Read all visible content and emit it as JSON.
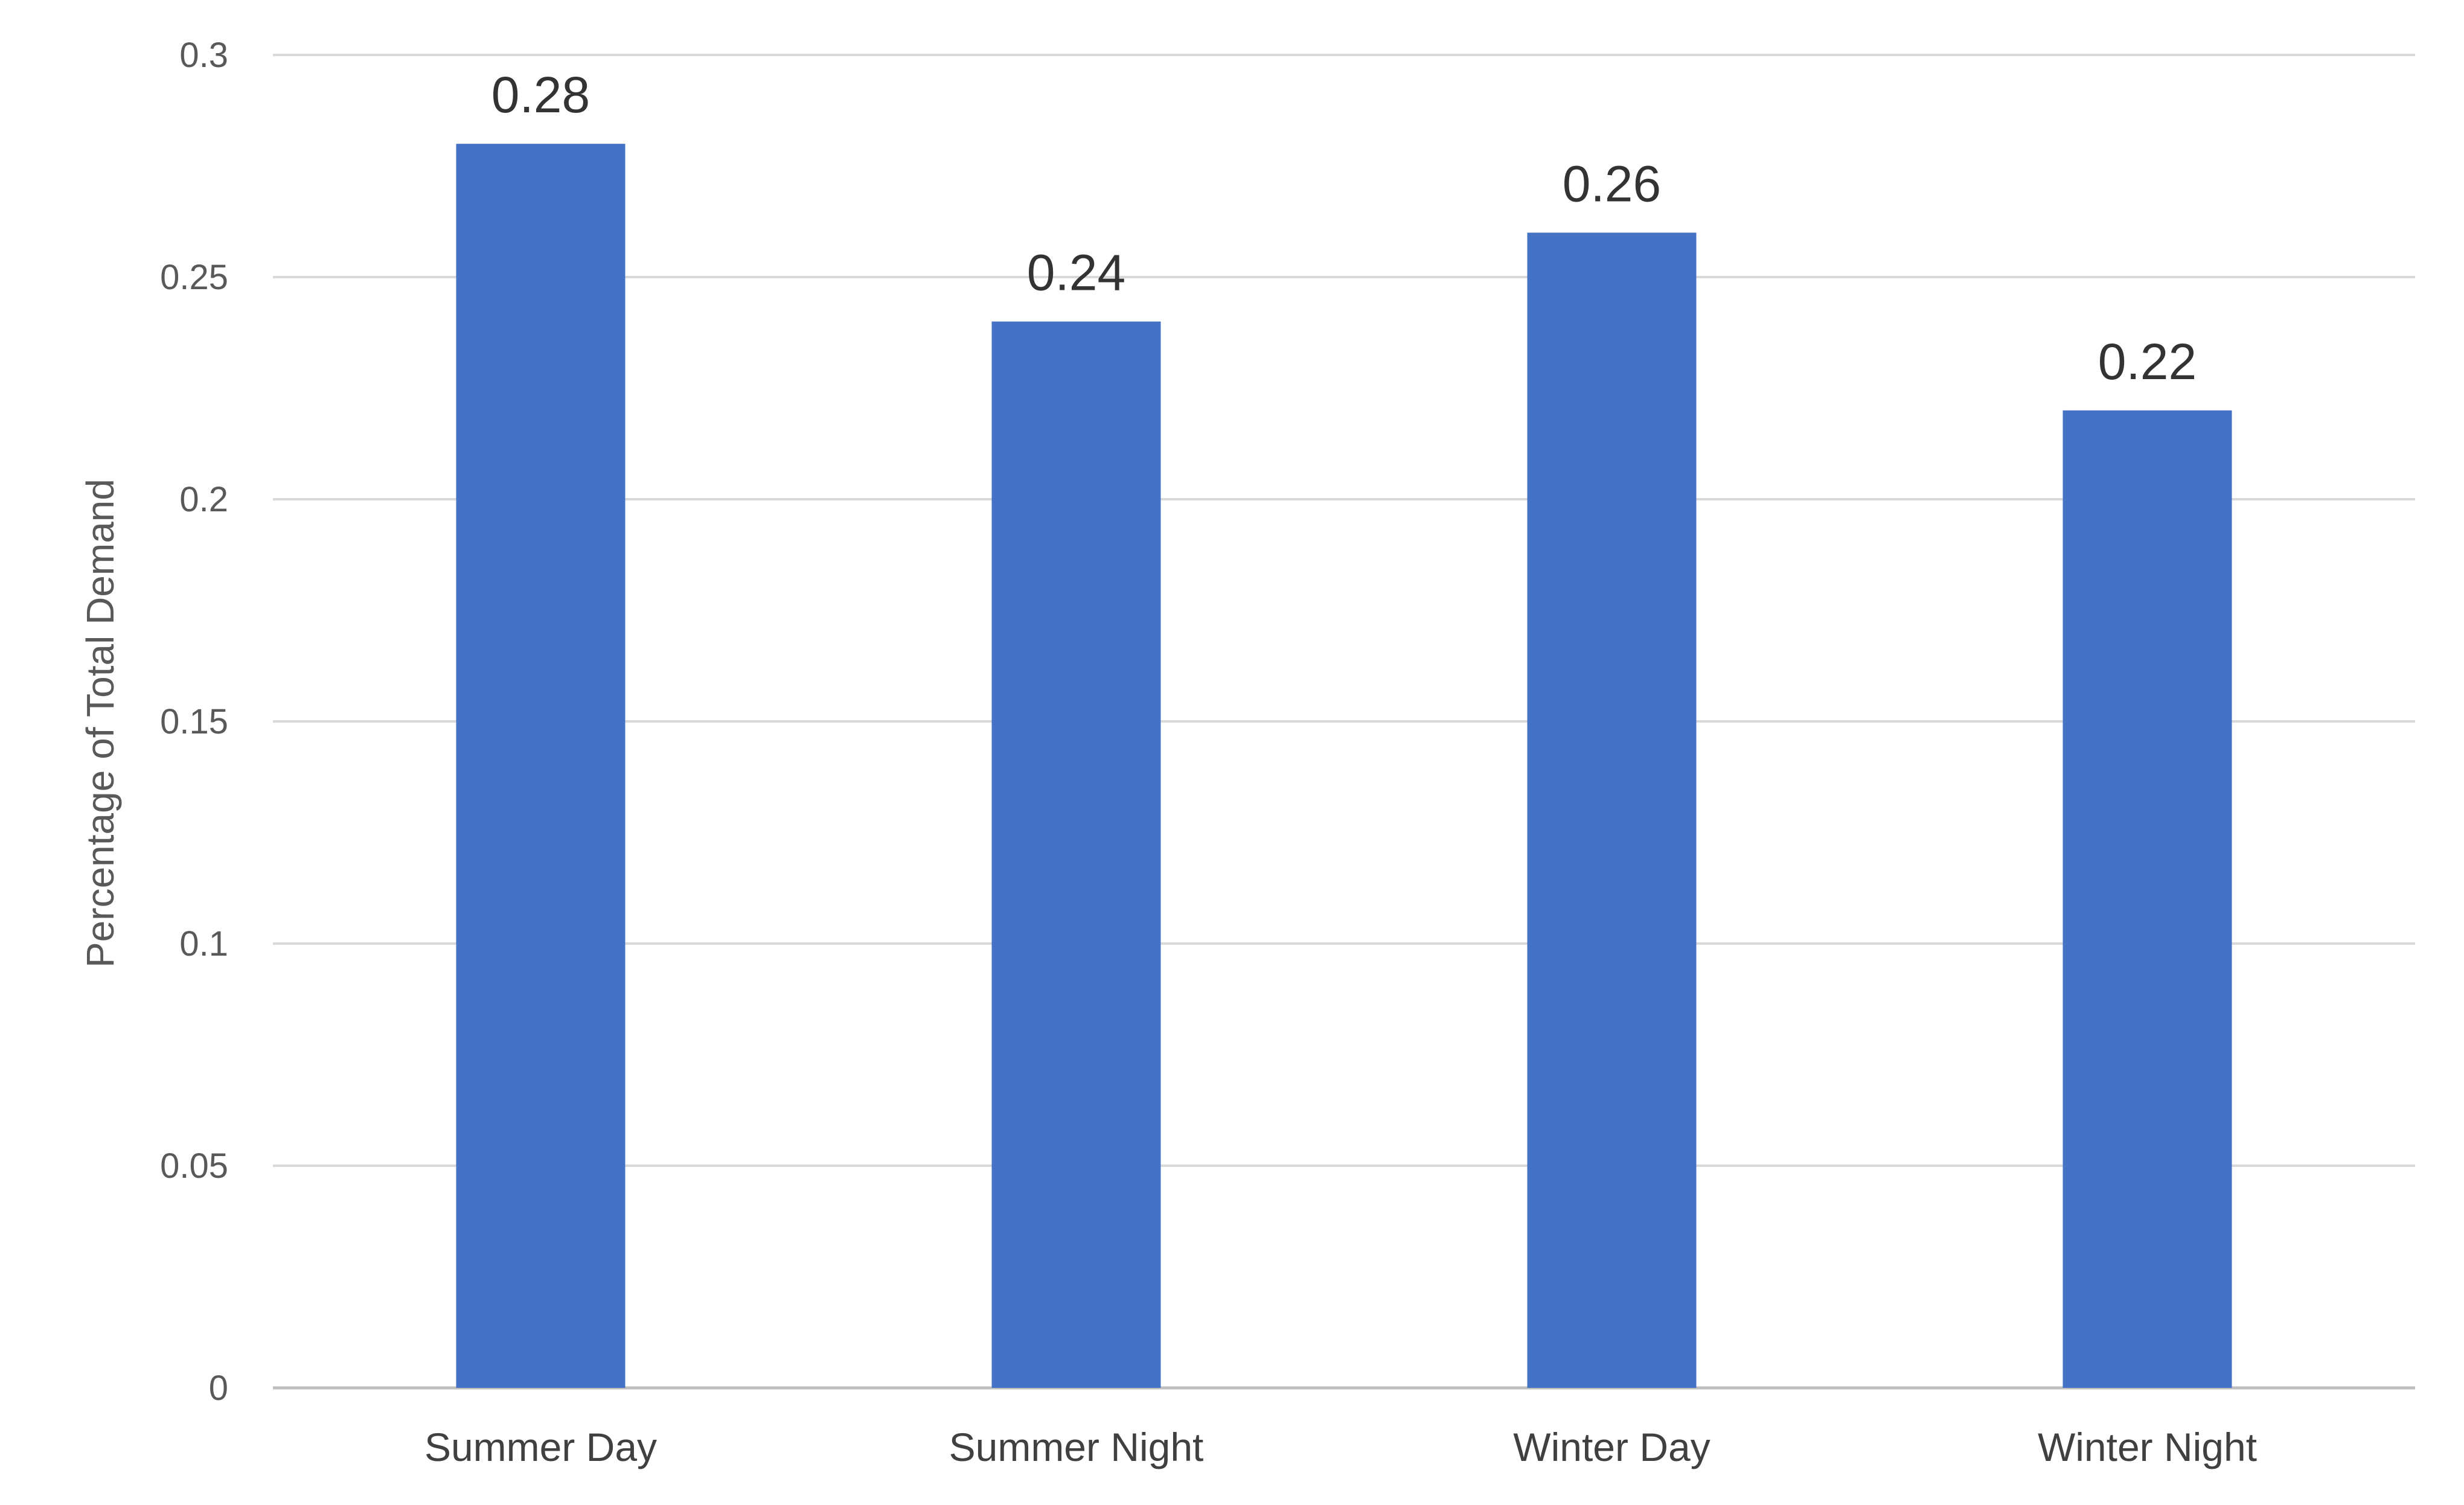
{
  "chart_data": {
    "type": "bar",
    "categories": [
      "Summer Day",
      "Summer Night",
      "Winter Day",
      "Winter Night"
    ],
    "values": [
      0.28,
      0.24,
      0.26,
      0.22
    ],
    "data_labels": [
      "0.28",
      "0.24",
      "0.26",
      "0.22"
    ],
    "title": "",
    "xlabel": "",
    "ylabel": "Percentage of Total Demand",
    "ylim": [
      0,
      0.3
    ],
    "yticks": [
      0,
      0.05,
      0.1,
      0.15,
      0.2,
      0.25,
      0.3
    ],
    "ytick_labels": [
      "0",
      "0.05",
      "0.1",
      "0.15",
      "0.2",
      "0.25",
      "0.3"
    ],
    "grid": true,
    "legend": "none",
    "bar_color": "#4472C4",
    "grid_color": "#D9D9D9"
  }
}
